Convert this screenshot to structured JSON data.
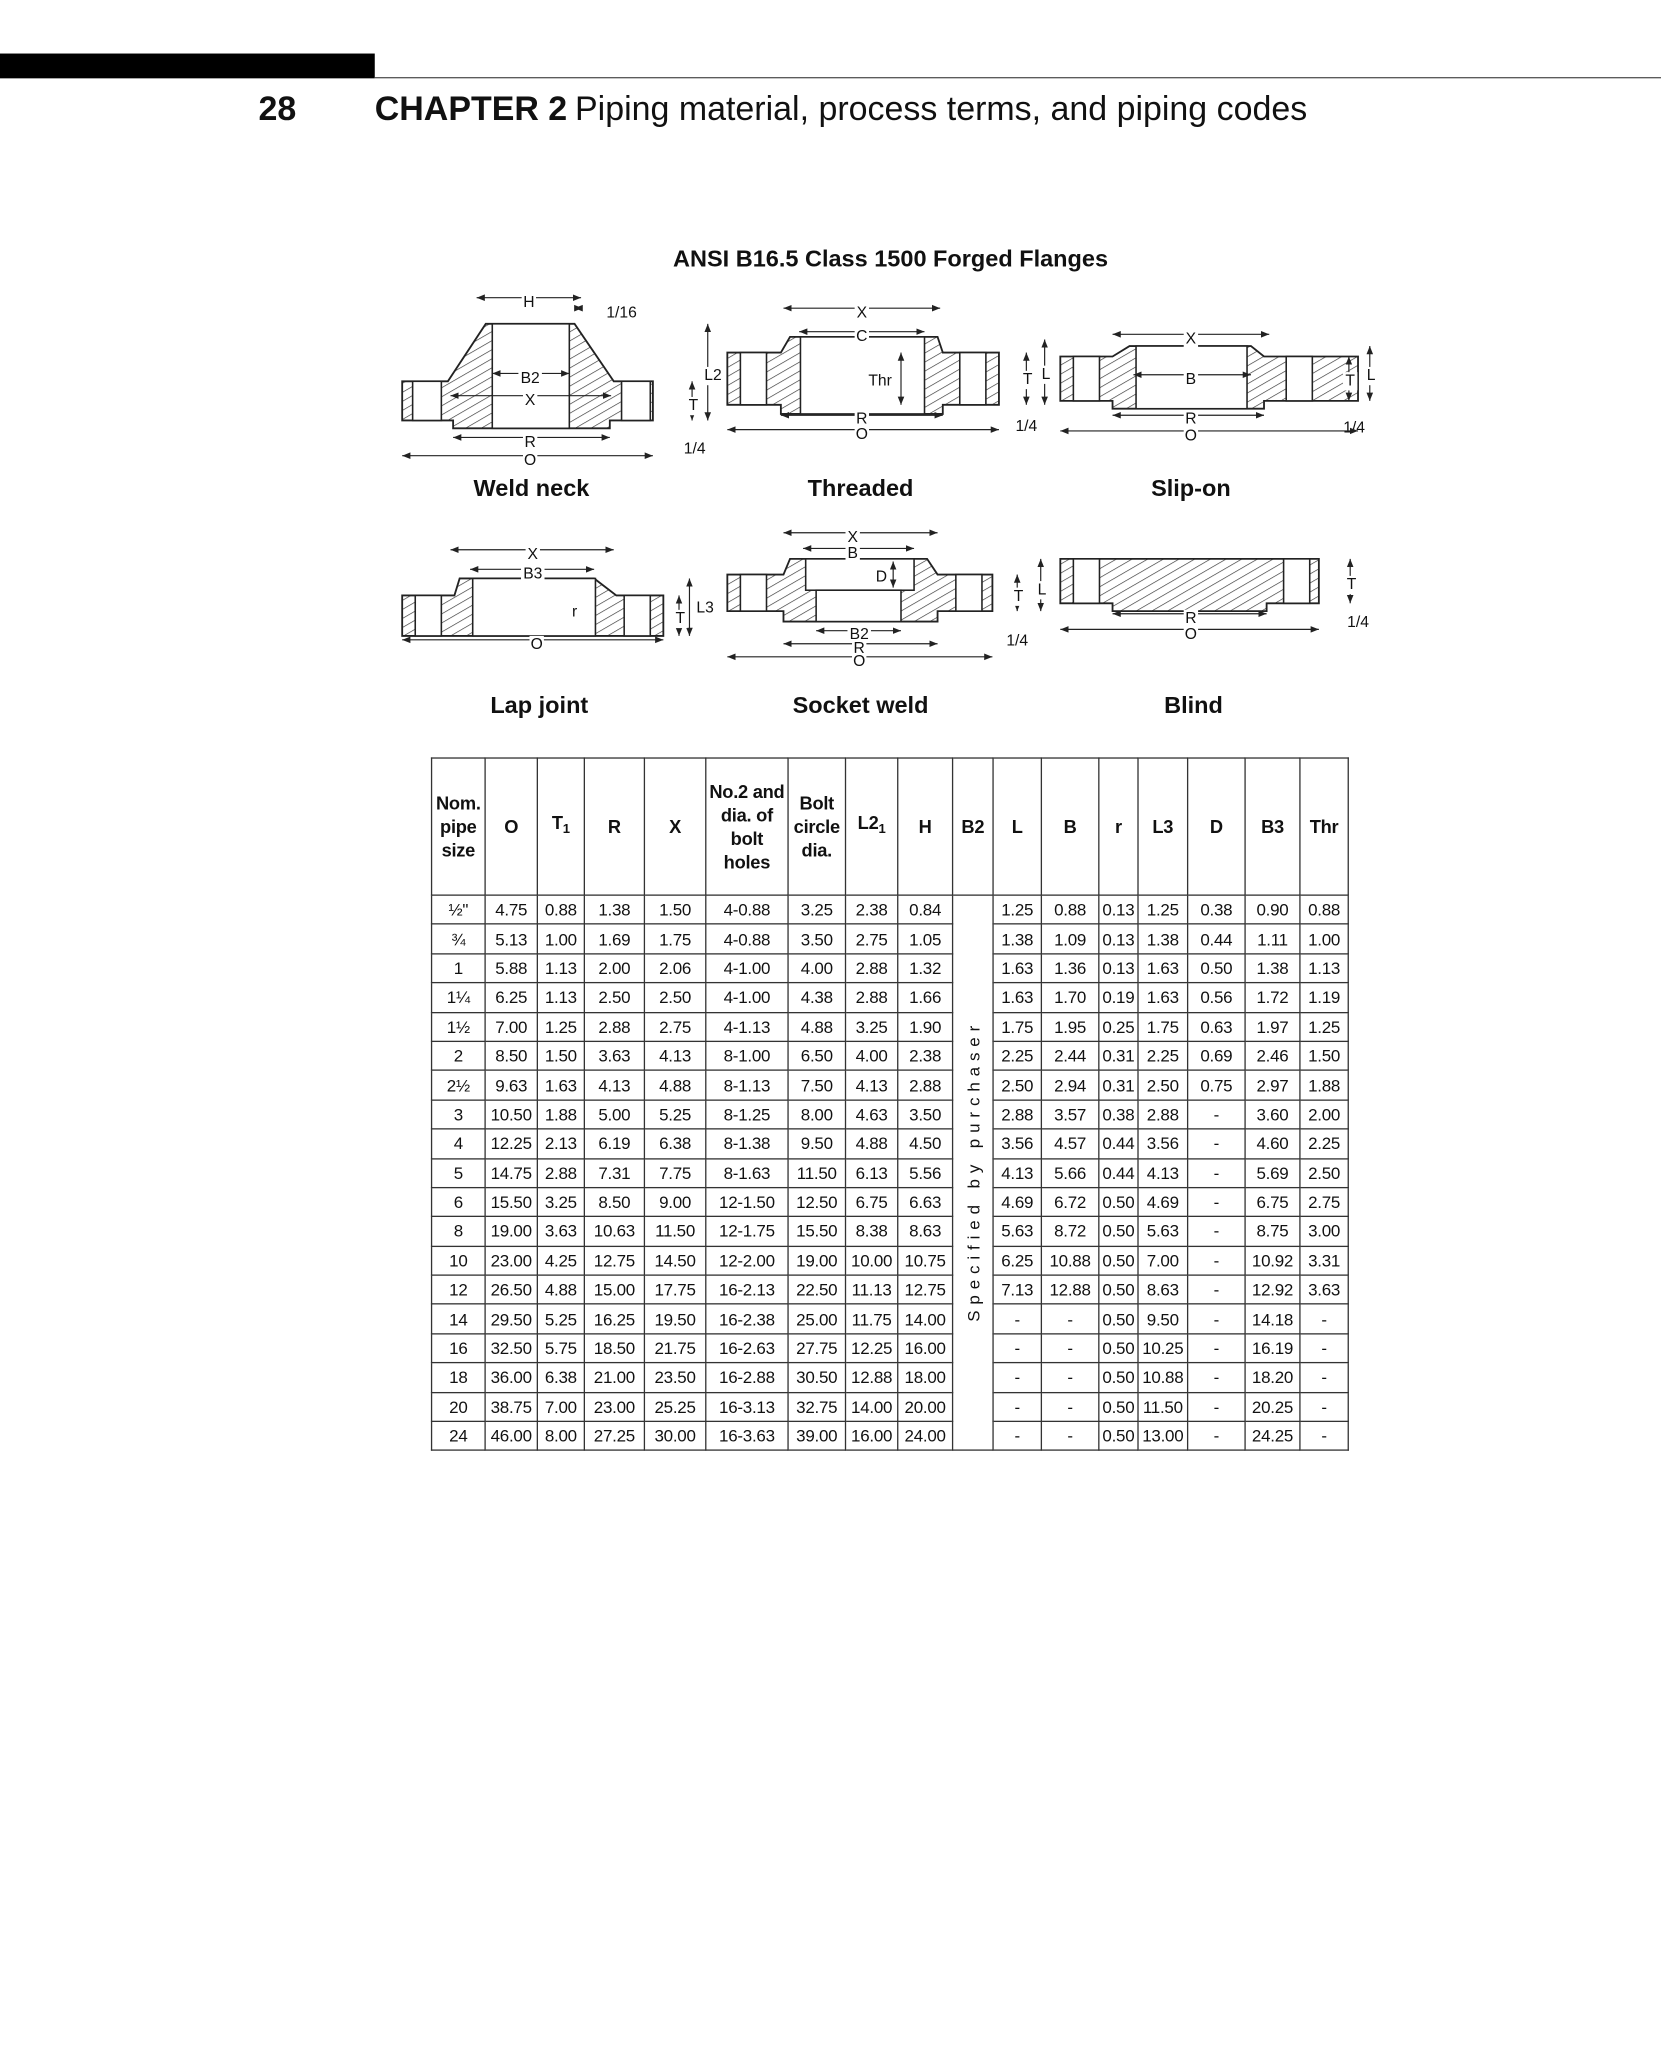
{
  "header": {
    "page_number": "28",
    "chapter_label": "CHAPTER 2",
    "chapter_title": "Piping material, process terms, and piping codes"
  },
  "figure": {
    "title": "ANSI B16.5 Class 1500 Forged Flanges",
    "drawings": {
      "weld_neck": {
        "caption": "Weld neck",
        "labels": [
          "H",
          "1/16",
          "B2",
          "X",
          "L2",
          "T",
          "1/4",
          "R",
          "O"
        ]
      },
      "threaded": {
        "caption": "Threaded",
        "labels": [
          "X",
          "C",
          "Thr",
          "T",
          "L",
          "1/4",
          "R",
          "O"
        ]
      },
      "slip_on": {
        "caption": "Slip-on",
        "labels": [
          "X",
          "B",
          "T",
          "L",
          "1/4",
          "R",
          "O"
        ]
      },
      "lap_joint": {
        "caption": "Lap joint",
        "labels": [
          "X",
          "B3",
          "r",
          "L3",
          "T",
          "O"
        ]
      },
      "socket_weld": {
        "caption": "Socket weld",
        "labels": [
          "X",
          "B",
          "D",
          "T",
          "L",
          "1/4",
          "B2",
          "R",
          "O"
        ]
      },
      "blind": {
        "caption": "Blind",
        "labels": [
          "T",
          "1/4",
          "R",
          "O"
        ]
      }
    }
  },
  "table": {
    "headers": [
      {
        "main": "Nom. pipe size"
      },
      {
        "main": "O"
      },
      {
        "main": "T",
        "sub": "1"
      },
      {
        "main": "R"
      },
      {
        "main": "X"
      },
      {
        "main": "No.2 and dia. of bolt holes"
      },
      {
        "main": "Bolt circle dia."
      },
      {
        "main": "L2",
        "sub": "1"
      },
      {
        "main": "H"
      },
      {
        "main": "B2"
      },
      {
        "main": "L"
      },
      {
        "main": "B"
      },
      {
        "main": "r"
      },
      {
        "main": "L3"
      },
      {
        "main": "D"
      },
      {
        "main": "B3"
      },
      {
        "main": "Thr"
      }
    ],
    "b2_note": "Specified by purchaser",
    "rows": [
      [
        "½\"",
        "4.75",
        "0.88",
        "1.38",
        "1.50",
        "4-0.88",
        "3.25",
        "2.38",
        "0.84",
        "1.25",
        "0.88",
        "0.13",
        "1.25",
        "0.38",
        "0.90",
        "0.88"
      ],
      [
        "¾",
        "5.13",
        "1.00",
        "1.69",
        "1.75",
        "4-0.88",
        "3.50",
        "2.75",
        "1.05",
        "1.38",
        "1.09",
        "0.13",
        "1.38",
        "0.44",
        "1.11",
        "1.00"
      ],
      [
        "1",
        "5.88",
        "1.13",
        "2.00",
        "2.06",
        "4-1.00",
        "4.00",
        "2.88",
        "1.32",
        "1.63",
        "1.36",
        "0.13",
        "1.63",
        "0.50",
        "1.38",
        "1.13"
      ],
      [
        "1¼",
        "6.25",
        "1.13",
        "2.50",
        "2.50",
        "4-1.00",
        "4.38",
        "2.88",
        "1.66",
        "1.63",
        "1.70",
        "0.19",
        "1.63",
        "0.56",
        "1.72",
        "1.19"
      ],
      [
        "1½",
        "7.00",
        "1.25",
        "2.88",
        "2.75",
        "4-1.13",
        "4.88",
        "3.25",
        "1.90",
        "1.75",
        "1.95",
        "0.25",
        "1.75",
        "0.63",
        "1.97",
        "1.25"
      ],
      [
        "2",
        "8.50",
        "1.50",
        "3.63",
        "4.13",
        "8-1.00",
        "6.50",
        "4.00",
        "2.38",
        "2.25",
        "2.44",
        "0.31",
        "2.25",
        "0.69",
        "2.46",
        "1.50"
      ],
      [
        "2½",
        "9.63",
        "1.63",
        "4.13",
        "4.88",
        "8-1.13",
        "7.50",
        "4.13",
        "2.88",
        "2.50",
        "2.94",
        "0.31",
        "2.50",
        "0.75",
        "2.97",
        "1.88"
      ],
      [
        "3",
        "10.50",
        "1.88",
        "5.00",
        "5.25",
        "8-1.25",
        "8.00",
        "4.63",
        "3.50",
        "2.88",
        "3.57",
        "0.38",
        "2.88",
        "-",
        "3.60",
        "2.00"
      ],
      [
        "4",
        "12.25",
        "2.13",
        "6.19",
        "6.38",
        "8-1.38",
        "9.50",
        "4.88",
        "4.50",
        "3.56",
        "4.57",
        "0.44",
        "3.56",
        "-",
        "4.60",
        "2.25"
      ],
      [
        "5",
        "14.75",
        "2.88",
        "7.31",
        "7.75",
        "8-1.63",
        "11.50",
        "6.13",
        "5.56",
        "4.13",
        "5.66",
        "0.44",
        "4.13",
        "-",
        "5.69",
        "2.50"
      ],
      [
        "6",
        "15.50",
        "3.25",
        "8.50",
        "9.00",
        "12-1.50",
        "12.50",
        "6.75",
        "6.63",
        "4.69",
        "6.72",
        "0.50",
        "4.69",
        "-",
        "6.75",
        "2.75"
      ],
      [
        "8",
        "19.00",
        "3.63",
        "10.63",
        "11.50",
        "12-1.75",
        "15.50",
        "8.38",
        "8.63",
        "5.63",
        "8.72",
        "0.50",
        "5.63",
        "-",
        "8.75",
        "3.00"
      ],
      [
        "10",
        "23.00",
        "4.25",
        "12.75",
        "14.50",
        "12-2.00",
        "19.00",
        "10.00",
        "10.75",
        "6.25",
        "10.88",
        "0.50",
        "7.00",
        "-",
        "10.92",
        "3.31"
      ],
      [
        "12",
        "26.50",
        "4.88",
        "15.00",
        "17.75",
        "16-2.13",
        "22.50",
        "11.13",
        "12.75",
        "7.13",
        "12.88",
        "0.50",
        "8.63",
        "-",
        "12.92",
        "3.63"
      ],
      [
        "14",
        "29.50",
        "5.25",
        "16.25",
        "19.50",
        "16-2.38",
        "25.00",
        "11.75",
        "14.00",
        "-",
        "-",
        "0.50",
        "9.50",
        "-",
        "14.18",
        "-"
      ],
      [
        "16",
        "32.50",
        "5.75",
        "18.50",
        "21.75",
        "16-2.63",
        "27.75",
        "12.25",
        "16.00",
        "-",
        "-",
        "0.50",
        "10.25",
        "-",
        "16.19",
        "-"
      ],
      [
        "18",
        "36.00",
        "6.38",
        "21.00",
        "23.50",
        "16-2.88",
        "30.50",
        "12.88",
        "18.00",
        "-",
        "-",
        "0.50",
        "10.88",
        "-",
        "18.20",
        "-"
      ],
      [
        "20",
        "38.75",
        "7.00",
        "23.00",
        "25.25",
        "16-3.13",
        "32.75",
        "14.00",
        "20.00",
        "-",
        "-",
        "0.50",
        "11.50",
        "-",
        "20.25",
        "-"
      ],
      [
        "24",
        "46.00",
        "8.00",
        "27.25",
        "30.00",
        "16-3.63",
        "39.00",
        "16.00",
        "24.00",
        "-",
        "-",
        "0.50",
        "13.00",
        "-",
        "24.25",
        "-"
      ]
    ]
  }
}
